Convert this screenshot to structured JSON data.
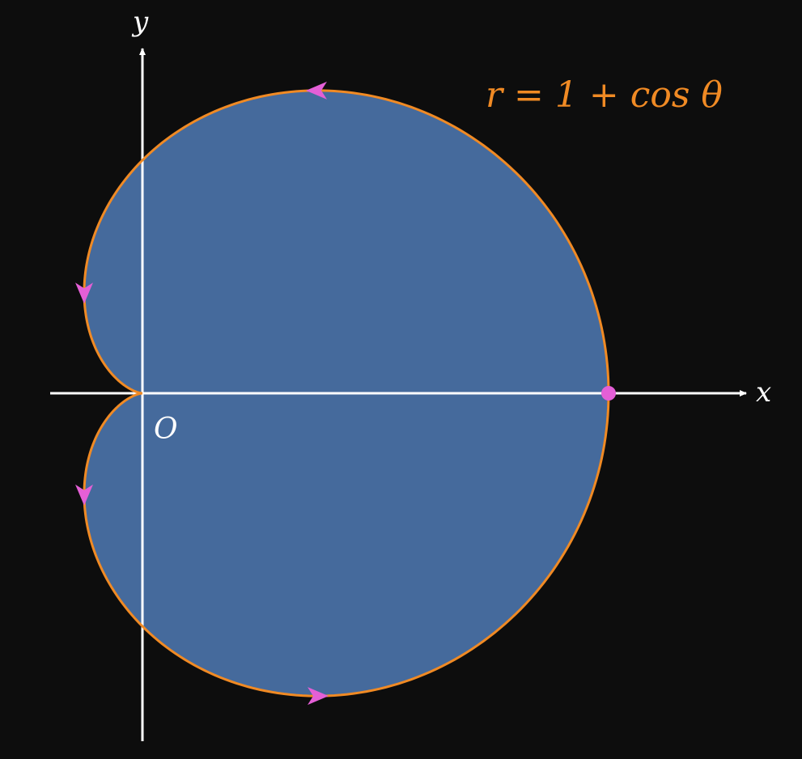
{
  "diagram": {
    "equation": "r = 1 + cos θ",
    "curve": "cardioid",
    "parameter_range": [
      0,
      6.283185307179586
    ],
    "direction": "counterclockwise",
    "arrow_angles_rad": [
      1.0472,
      2.0944,
      4.1888,
      5.236
    ],
    "marked_point": {
      "r": 2,
      "theta": 0
    },
    "axes": {
      "x_label": "x",
      "y_label": "y",
      "origin_label": "O"
    },
    "colors": {
      "background": "#0d0d0d",
      "fill": "#456a9c",
      "curve": "#f08a24",
      "arrows": "#e45fd6",
      "point": "#e45fd6",
      "axes": "#ffffff",
      "equation": "#f08a24",
      "labels": "#ffffff"
    }
  }
}
